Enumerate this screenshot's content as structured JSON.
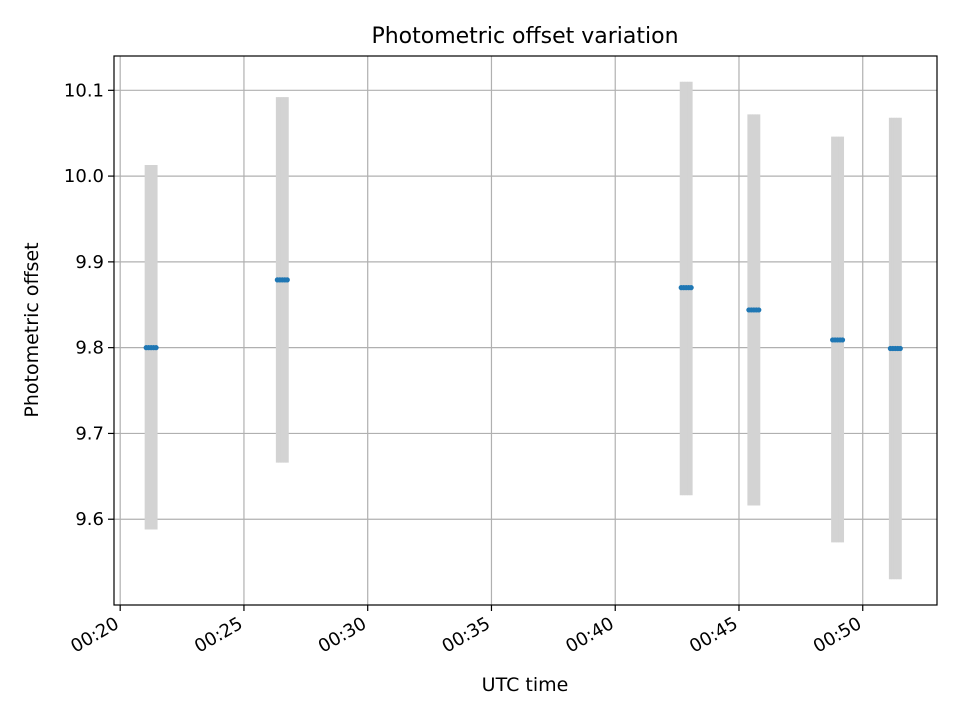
{
  "chart_data": {
    "type": "scatter",
    "title": "Photometric offset variation",
    "xlabel": "UTC time",
    "ylabel": "Photometric offset",
    "x_unit": "HH:MM UTC",
    "xlim": [
      "00:19:45",
      "00:53:00"
    ],
    "ylim": [
      9.5,
      10.14
    ],
    "xticks": [
      "00:20",
      "00:25",
      "00:30",
      "00:35",
      "00:40",
      "00:45",
      "00:50"
    ],
    "yticks": [
      9.6,
      9.7,
      9.8,
      9.9,
      10.0,
      10.1
    ],
    "grid": true,
    "legend": "none",
    "colors": {
      "points": "#1f77b4",
      "errorbars": "#d3d3d3",
      "grid": "#b0b0b0"
    },
    "groups": [
      {
        "x": [
          "00:21:03",
          "00:21:09",
          "00:21:15",
          "00:21:21",
          "00:21:27"
        ],
        "y": 9.8,
        "ymin": 9.588,
        "ymax": 10.013
      },
      {
        "x": [
          "00:26:21",
          "00:26:27",
          "00:26:33",
          "00:26:39",
          "00:26:45"
        ],
        "y": 9.879,
        "ymin": 9.666,
        "ymax": 10.092
      },
      {
        "x": [
          "00:42:40",
          "00:42:46",
          "00:42:52",
          "00:42:58",
          "00:43:04"
        ],
        "y": 9.87,
        "ymin": 9.628,
        "ymax": 10.11
      },
      {
        "x": [
          "00:45:24",
          "00:45:30",
          "00:45:36",
          "00:45:42",
          "00:45:48"
        ],
        "y": 9.844,
        "ymin": 9.616,
        "ymax": 10.072
      },
      {
        "x": [
          "00:48:47",
          "00:48:53",
          "00:48:59",
          "00:49:05",
          "00:49:11"
        ],
        "y": 9.809,
        "ymin": 9.573,
        "ymax": 10.046
      },
      {
        "x": [
          "00:51:07",
          "00:51:13",
          "00:51:19",
          "00:51:25",
          "00:51:31"
        ],
        "y": 9.799,
        "ymin": 9.53,
        "ymax": 10.068
      }
    ]
  }
}
